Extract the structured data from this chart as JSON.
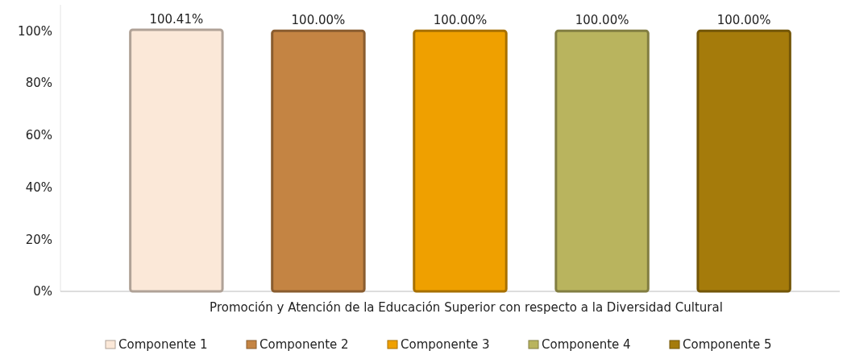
{
  "chart_data": {
    "type": "bar",
    "xlabel": "Promoción y Atención de la Educación Superior con respecto a la Diversidad Cultural",
    "categories": [
      null
    ],
    "series": [
      {
        "name": "Componente 1",
        "color": "#fbe8d8",
        "values": [
          100.41
        ],
        "value_labels": [
          "100.41%"
        ]
      },
      {
        "name": "Componente 2",
        "color": "#c48443",
        "values": [
          100
        ],
        "value_labels": [
          "100.00%"
        ]
      },
      {
        "name": "Componente 3",
        "color": "#efa000",
        "values": [
          100
        ],
        "value_labels": [
          "100.00%"
        ]
      },
      {
        "name": "Componente 4",
        "color": "#b9b45e",
        "values": [
          100
        ],
        "value_labels": [
          "100.00%"
        ]
      },
      {
        "name": "Componente 5",
        "color": "#a57b0b",
        "values": [
          100
        ],
        "value_labels": [
          "100.00%"
        ]
      }
    ],
    "ylim": [
      0,
      110
    ],
    "yticks": [
      {
        "value": 0,
        "label": "0%"
      },
      {
        "value": 20,
        "label": "20%"
      },
      {
        "value": 40,
        "label": "40%"
      },
      {
        "value": 60,
        "label": "60%"
      },
      {
        "value": 80,
        "label": "80%"
      },
      {
        "value": 100,
        "label": "100%"
      }
    ],
    "grid": false,
    "legend": "bottom"
  }
}
